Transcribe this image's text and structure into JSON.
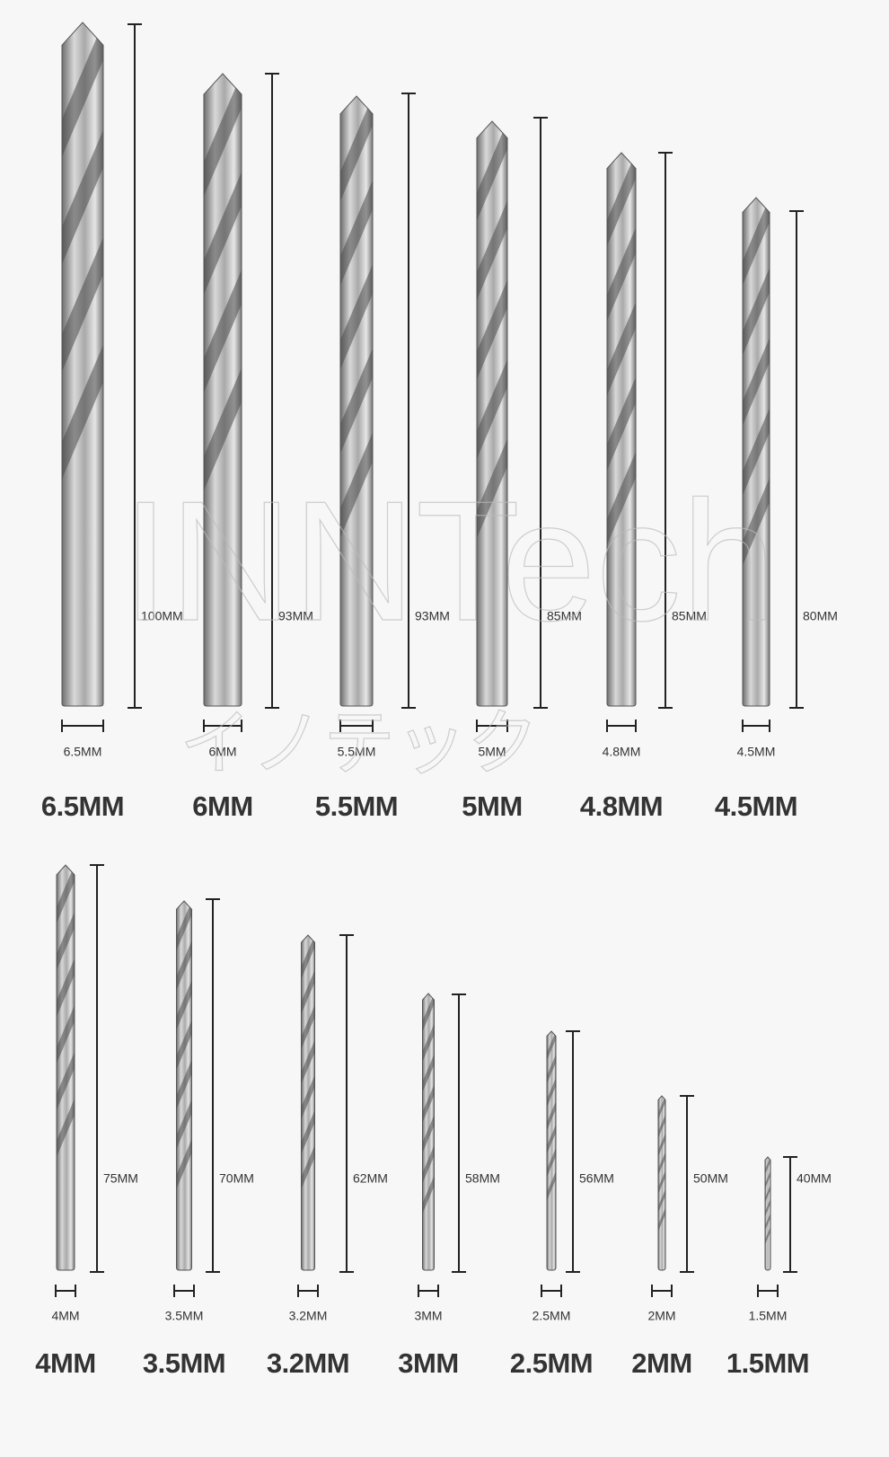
{
  "watermark": {
    "latin": "INNTech",
    "kana": "イノテック"
  },
  "rows": [
    {
      "bits": [
        {
          "size": "6.5MM",
          "diameter": "6.5MM",
          "length": "100MM"
        },
        {
          "size": "6MM",
          "diameter": "6MM",
          "length": "93MM"
        },
        {
          "size": "5.5MM",
          "diameter": "5.5MM",
          "length": "93MM"
        },
        {
          "size": "5MM",
          "diameter": "5MM",
          "length": "85MM"
        },
        {
          "size": "4.8MM",
          "diameter": "4.8MM",
          "length": "85MM"
        },
        {
          "size": "4.5MM",
          "diameter": "4.5MM",
          "length": "80MM"
        }
      ]
    },
    {
      "bits": [
        {
          "size": "4MM",
          "diameter": "4MM",
          "length": "75MM"
        },
        {
          "size": "3.5MM",
          "diameter": "3.5MM",
          "length": "70MM"
        },
        {
          "size": "3.2MM",
          "diameter": "3.2MM",
          "length": "62MM"
        },
        {
          "size": "3MM",
          "diameter": "3MM",
          "length": "58MM"
        },
        {
          "size": "2.5MM",
          "diameter": "2.5MM",
          "length": "56MM"
        },
        {
          "size": "2MM",
          "diameter": "2MM",
          "length": "50MM"
        },
        {
          "size": "1.5MM",
          "diameter": "1.5MM",
          "length": "40MM"
        }
      ]
    }
  ]
}
